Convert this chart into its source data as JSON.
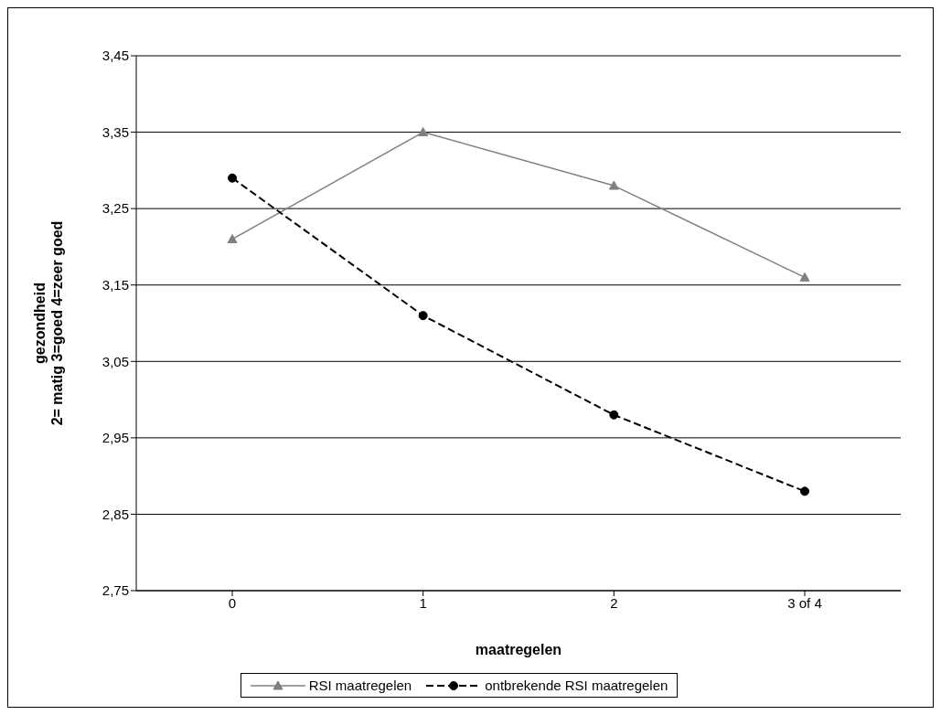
{
  "chart_data": {
    "type": "line",
    "xlabel": "maatregelen",
    "ylabel": "gezondheid\n2= matig 3=goed 4=zeer goed",
    "categories": [
      "0",
      "1",
      "2",
      "3 of 4"
    ],
    "series": [
      {
        "name": "RSI maatregelen",
        "color": "#808080",
        "values": [
          3.21,
          3.35,
          3.28,
          3.16
        ],
        "marker": "triangle",
        "line_style": "solid"
      },
      {
        "name": "ontbrekende RSI maatregelen",
        "color": "#000000",
        "values": [
          3.29,
          3.11,
          2.98,
          2.88
        ],
        "marker": "circle",
        "line_style": "dashed"
      }
    ],
    "ylim": [
      2.75,
      3.45
    ],
    "yticks": [
      {
        "value": 2.75,
        "label": "2,75"
      },
      {
        "value": 2.85,
        "label": "2,85"
      },
      {
        "value": 2.95,
        "label": "2,95"
      },
      {
        "value": 3.05,
        "label": "3,05"
      },
      {
        "value": 3.15,
        "label": "3,15"
      },
      {
        "value": 3.25,
        "label": "3,25"
      },
      {
        "value": 3.35,
        "label": "3,35"
      },
      {
        "value": 3.45,
        "label": "3,45"
      }
    ],
    "grid": "y",
    "legend": "bottom"
  }
}
